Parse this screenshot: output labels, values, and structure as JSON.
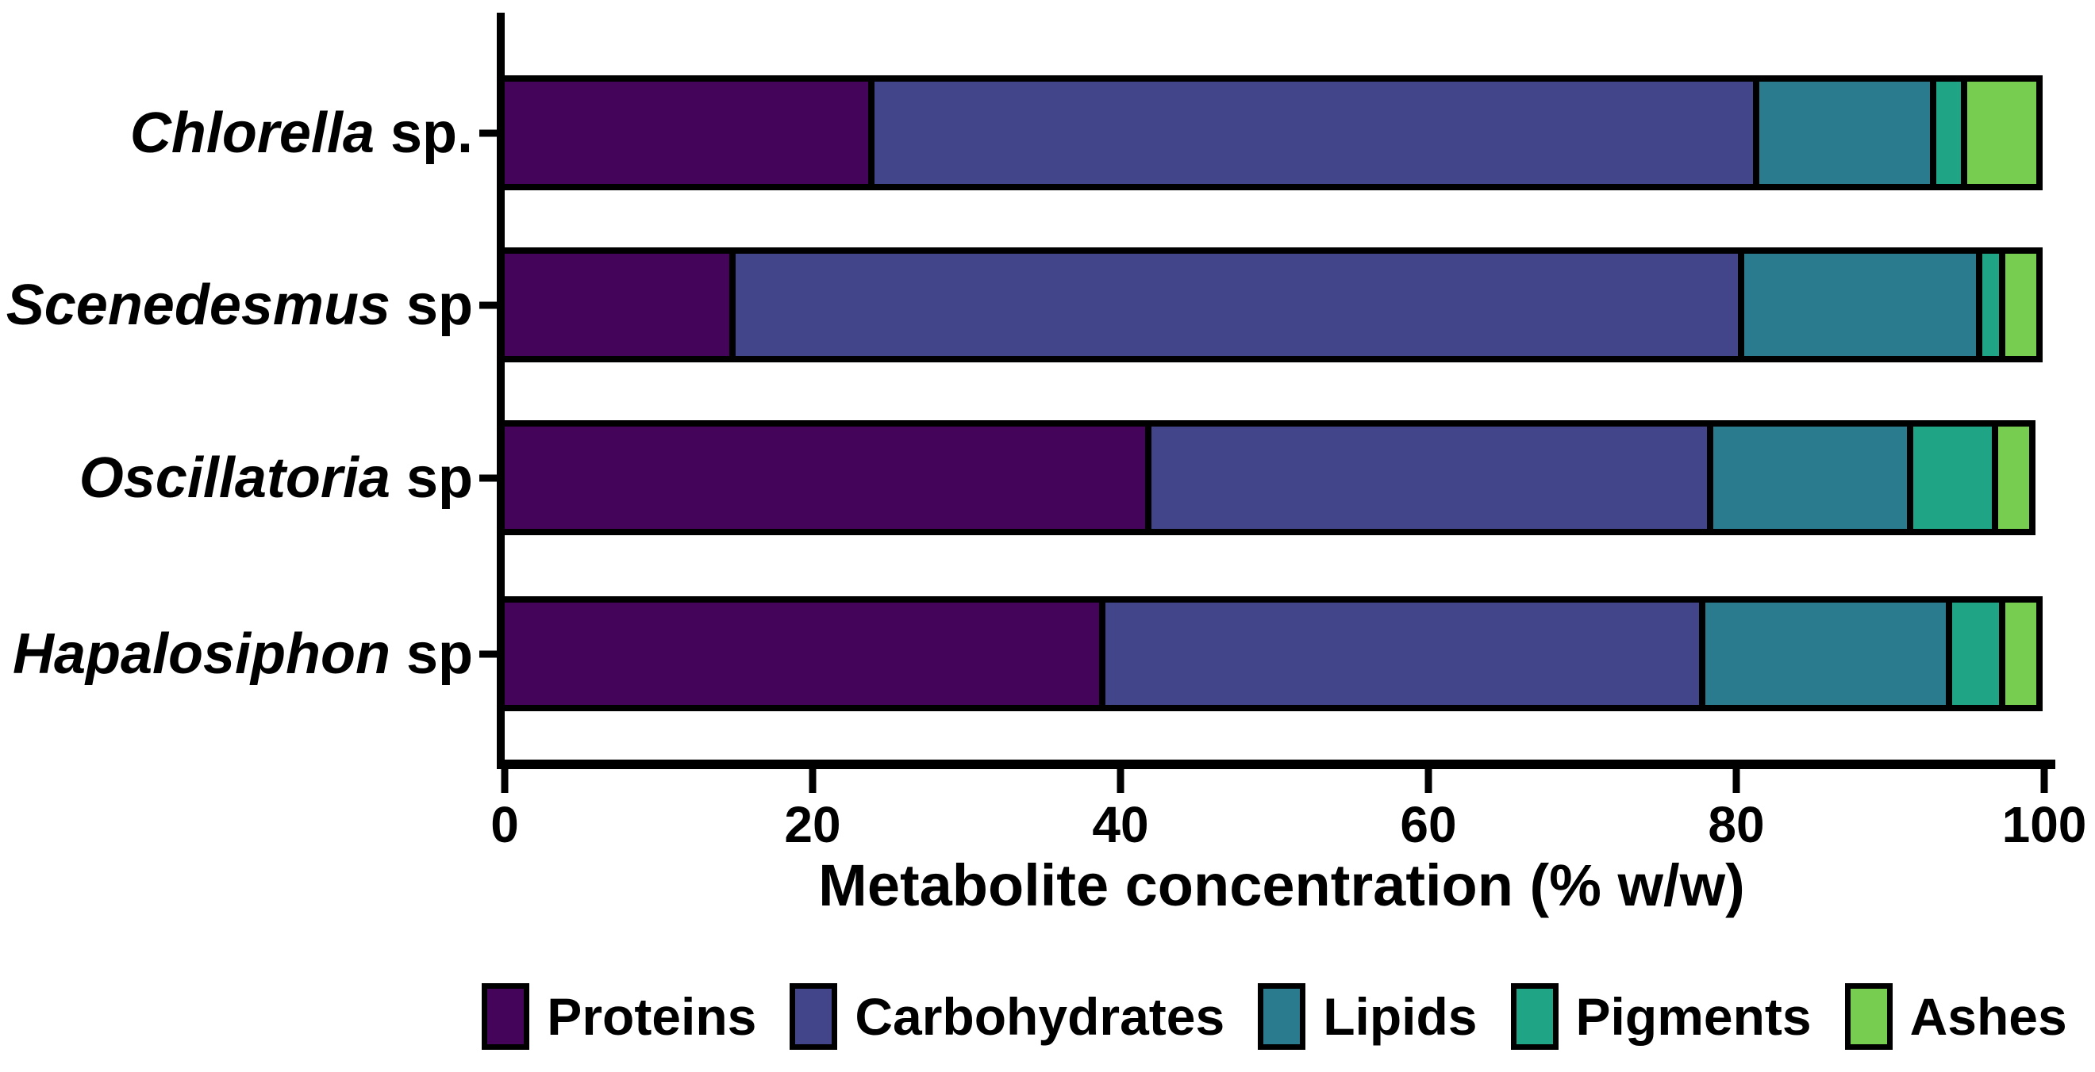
{
  "chart_data": {
    "type": "bar",
    "orientation": "horizontal",
    "stacked": true,
    "title": "",
    "xlabel": "Metabolite concentration (% w/w)",
    "ylabel": "",
    "xlim": [
      0,
      100
    ],
    "x_ticks": [
      "0",
      "20",
      "40",
      "60",
      "80",
      "100"
    ],
    "x_tick_values": [
      0,
      20,
      40,
      60,
      80,
      100
    ],
    "grid": false,
    "legend_position": "bottom",
    "categories": [
      {
        "genus": "Chlorella",
        "suffix": " sp.",
        "full": "Chlorella sp."
      },
      {
        "genus": "Scenedesmus",
        "suffix": " sp",
        "full": "Scenedesmus sp"
      },
      {
        "genus": "Oscillatoria",
        "suffix": " sp",
        "full": "Oscillatoria sp"
      },
      {
        "genus": "Hapalosiphon",
        "suffix": " sp",
        "full": "Hapalosiphon sp"
      }
    ],
    "series": [
      {
        "name": "Proteins",
        "color": "#44045a",
        "values": [
          24.0,
          15.0,
          42.0,
          39.0
        ]
      },
      {
        "name": "Carbohydrates",
        "color": "#424589",
        "values": [
          57.5,
          65.5,
          36.5,
          39.0
        ]
      },
      {
        "name": "Lipids",
        "color": "#2b7b8f",
        "values": [
          11.5,
          15.5,
          13.0,
          16.0
        ]
      },
      {
        "name": "Pigments",
        "color": "#20a486",
        "values": [
          2.0,
          1.5,
          5.5,
          3.5
        ]
      },
      {
        "name": "Ashes",
        "color": "#77cd50",
        "values": [
          4.5,
          2.0,
          2.0,
          2.0
        ]
      }
    ],
    "colors": {
      "axis": "#000000",
      "background": "#ffffff"
    }
  }
}
